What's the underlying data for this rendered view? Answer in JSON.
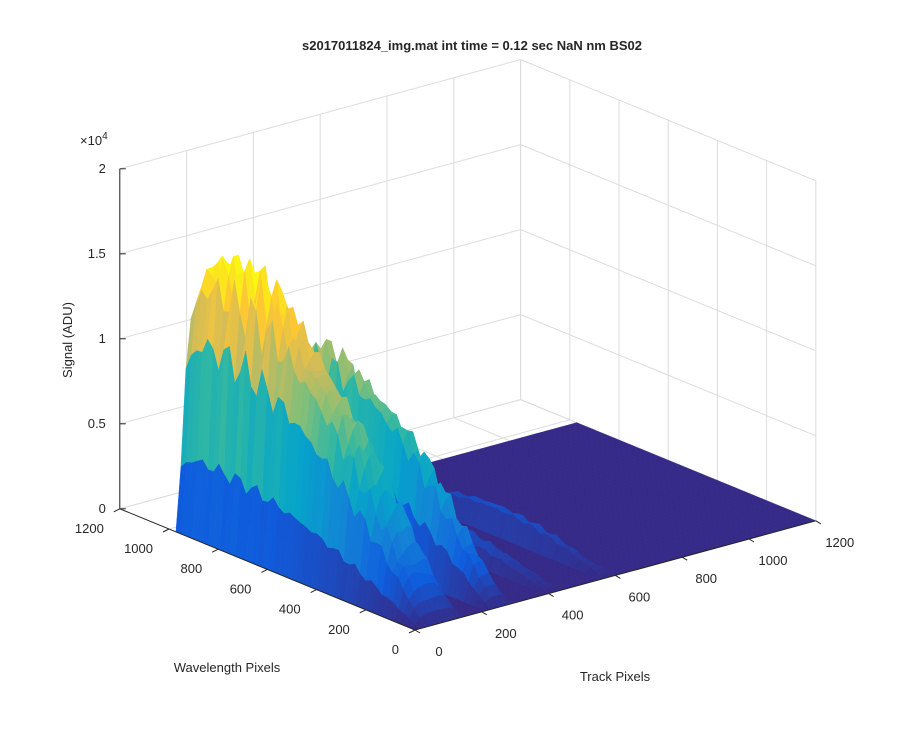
{
  "chart_data": {
    "type": "surface",
    "title": "s2017011824_img.mat int time = 0.12 sec  NaN nm BS02",
    "xlabel": "Track Pixels",
    "ylabel": "Wavelength Pixels",
    "zlabel": "Signal (ADU)",
    "xlim": [
      0,
      1200
    ],
    "ylim": [
      0,
      1200
    ],
    "zlim": [
      0,
      20000
    ],
    "x_ticks": [
      "0",
      "200",
      "400",
      "600",
      "800",
      "1000",
      "1200"
    ],
    "y_ticks": [
      "0",
      "200",
      "400",
      "600",
      "800",
      "1000",
      "1200"
    ],
    "z_ticks": [
      "0",
      "0.5",
      "1",
      "1.5",
      "2"
    ],
    "z_exponent_label": "×10",
    "z_exponent_power": "4",
    "grid": true,
    "colormap": "parula",
    "colors": [
      "#352a87",
      "#0f5cdd",
      "#1481d6",
      "#06a4ca",
      "#2eb7a4",
      "#87bf77",
      "#d1bb59",
      "#fec832",
      "#f9fb0e"
    ],
    "series": [
      {
        "track_center": 80,
        "track_width": 150,
        "wavelength_range": [
          0,
          1100
        ],
        "peak_wavelength": 900,
        "peak_signal": 15500
      },
      {
        "track_center": 255,
        "track_width": 80,
        "wavelength_range": [
          0,
          1000
        ],
        "peak_wavelength": 720,
        "peak_signal": 10500
      },
      {
        "track_center": 420,
        "track_width": 45,
        "wavelength_range": [
          0,
          850
        ],
        "peak_wavelength": 500,
        "peak_signal": 1700
      },
      {
        "track_center": 580,
        "track_width": 50,
        "wavelength_range": [
          0,
          900
        ],
        "peak_wavelength": 450,
        "peak_signal": 1500
      }
    ]
  }
}
